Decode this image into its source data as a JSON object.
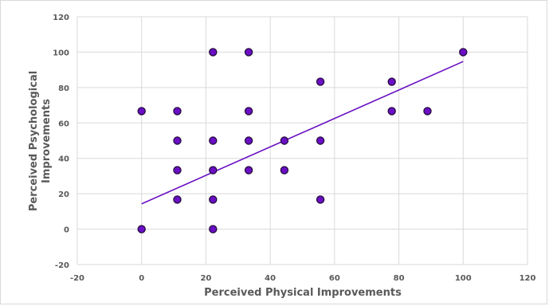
{
  "chart_data": {
    "type": "scatter",
    "xlabel": "Perceived Physical Improvements",
    "ylabel_lines": [
      "Perceived Psychological",
      "Improvements"
    ],
    "xlim": [
      -20,
      120
    ],
    "ylim": [
      -20,
      120
    ],
    "x_ticks": [
      "-20",
      "0",
      "20",
      "40",
      "60",
      "80",
      "100",
      "120"
    ],
    "y_ticks": [
      "-20",
      "0",
      "20",
      "40",
      "60",
      "80",
      "100",
      "120"
    ],
    "grid": true,
    "legend": "none",
    "colors": {
      "marker_fill": "#6a0fc4",
      "marker_stroke": "#1e0a33",
      "trendline": "#6a0fc4",
      "grid": "#d9d9d9"
    },
    "points": [
      {
        "x": 0,
        "y": 0
      },
      {
        "x": 0,
        "y": 66.7
      },
      {
        "x": 11.1,
        "y": 66.7
      },
      {
        "x": 11.1,
        "y": 50
      },
      {
        "x": 11.1,
        "y": 33.3
      },
      {
        "x": 11.1,
        "y": 16.7
      },
      {
        "x": 22.2,
        "y": 100
      },
      {
        "x": 22.2,
        "y": 50
      },
      {
        "x": 22.2,
        "y": 33.3
      },
      {
        "x": 22.2,
        "y": 16.7
      },
      {
        "x": 22.2,
        "y": 0
      },
      {
        "x": 33.3,
        "y": 100
      },
      {
        "x": 33.3,
        "y": 66.7
      },
      {
        "x": 33.3,
        "y": 50
      },
      {
        "x": 33.3,
        "y": 33.3
      },
      {
        "x": 44.4,
        "y": 50
      },
      {
        "x": 44.4,
        "y": 33.3
      },
      {
        "x": 55.6,
        "y": 83.3
      },
      {
        "x": 55.6,
        "y": 50
      },
      {
        "x": 55.6,
        "y": 16.7
      },
      {
        "x": 77.8,
        "y": 83.3
      },
      {
        "x": 77.8,
        "y": 66.7
      },
      {
        "x": 88.9,
        "y": 66.7
      },
      {
        "x": 100,
        "y": 100
      }
    ],
    "trendline": {
      "start": {
        "x": 0,
        "y": 14.3
      },
      "end": {
        "x": 100,
        "y": 94.7
      }
    }
  }
}
